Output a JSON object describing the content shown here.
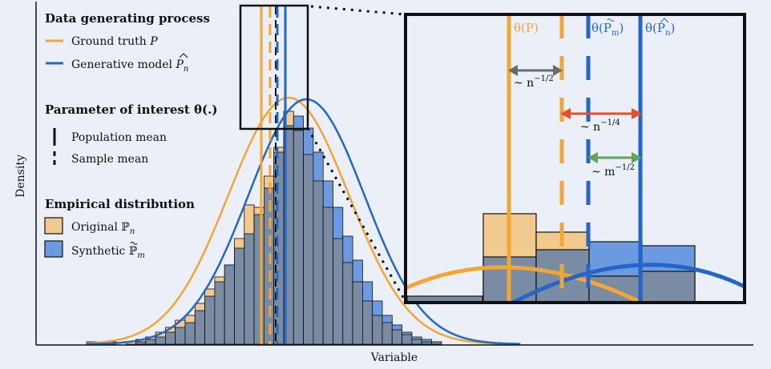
{
  "colors": {
    "background": "#eaeff8",
    "ground_truth": "#f2a633",
    "generative": "#2466c8",
    "original_fill": "#f2c98f",
    "synthetic_fill": "#6c9ae0",
    "overlap_fill": "#7a8ca3",
    "arrow_gray": "#6b6b6b",
    "arrow_red": "#e4502a",
    "arrow_green": "#62a556"
  },
  "axes": {
    "xlabel": "Variable",
    "ylabel": "Density"
  },
  "legend": {
    "dgp": {
      "title": "Data generating process",
      "ground_truth": "Ground truth",
      "ground_truth_sym": "P",
      "generative": "Generative model",
      "generative_sym": "P",
      "generative_sub": "n"
    },
    "param": {
      "title": "Parameter of interest θ(.)",
      "population": "Population mean",
      "sample": "Sample mean"
    },
    "empirical": {
      "title": "Empirical distribution",
      "original": "Original",
      "original_sym": "ℙ",
      "original_sub": "n",
      "synthetic": "Synthetic",
      "synthetic_sym": "ℙ",
      "synthetic_sub": "m"
    }
  },
  "inset": {
    "theta_p": "θ(P)",
    "theta_pm": "θ(P",
    "theta_pm_sub": "m",
    "theta_pn": "θ(P",
    "theta_pn_sub": "n",
    "close_paren": ")",
    "rate_n_half": "~ n",
    "rate_n_half_exp": "−1/2",
    "rate_n_quarter": "~ n",
    "rate_n_quarter_exp": "−1/4",
    "rate_m_half": "~ m",
    "rate_m_half_exp": "−1/2"
  },
  "chart_data": {
    "type": "bar",
    "xlabel": "Variable",
    "ylabel": "Density",
    "grid": false,
    "legend_position": "top-left",
    "bins_start": 0,
    "bin_width": 1,
    "original_counts": [
      1,
      0,
      1,
      0,
      1,
      2,
      3,
      5,
      7,
      10,
      12,
      17,
      23,
      28,
      33,
      44,
      58,
      57,
      70,
      82,
      97,
      89,
      79,
      68,
      57,
      44,
      34,
      26,
      18,
      12,
      9,
      6,
      4,
      2,
      1,
      1
    ],
    "synthetic_counts": [
      0,
      0,
      0,
      0,
      0,
      1,
      2,
      3,
      5,
      7,
      9,
      14,
      20,
      26,
      33,
      40,
      46,
      54,
      65,
      80,
      91,
      95,
      90,
      80,
      68,
      57,
      45,
      35,
      26,
      18,
      12,
      8,
      5,
      3,
      2,
      1
    ],
    "ground_truth_mean": 20.5,
    "generative_mean": 22.3,
    "population_mean_label": "Population mean",
    "sample_mean_label": "Sample mean"
  }
}
